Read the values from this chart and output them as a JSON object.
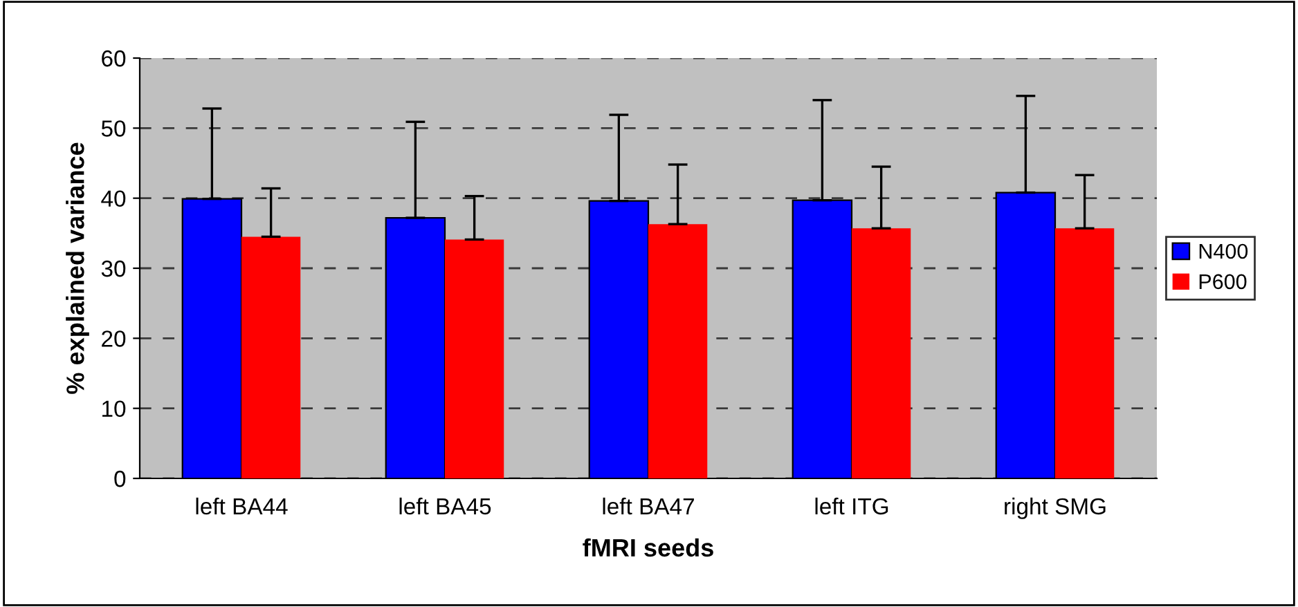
{
  "chart_data": {
    "type": "bar",
    "xlabel": "fMRI seeds",
    "ylabel": "% explained variance",
    "categories": [
      "left BA44",
      "left BA45",
      "left BA47",
      "left ITG",
      "right SMG"
    ],
    "series": [
      {
        "name": "N400",
        "color": "#0000ff",
        "values": [
          39.9,
          37.2,
          39.6,
          39.7,
          40.8
        ],
        "errors": [
          [
            39.9,
            52.8
          ],
          [
            37.2,
            50.9
          ],
          [
            39.6,
            51.9
          ],
          [
            39.7,
            54.0
          ],
          [
            40.8,
            54.6
          ]
        ]
      },
      {
        "name": "P600",
        "color": "#ff0000",
        "values": [
          34.5,
          34.1,
          36.3,
          35.7,
          35.7
        ],
        "errors": [
          [
            34.5,
            41.4
          ],
          [
            34.1,
            40.3
          ],
          [
            36.3,
            44.8
          ],
          [
            35.7,
            44.5
          ],
          [
            35.7,
            43.3
          ]
        ]
      }
    ],
    "ylim": [
      0,
      60
    ],
    "yticks": [
      0,
      10,
      20,
      30,
      40,
      50,
      60
    ],
    "grid": "y",
    "legend": "right"
  }
}
